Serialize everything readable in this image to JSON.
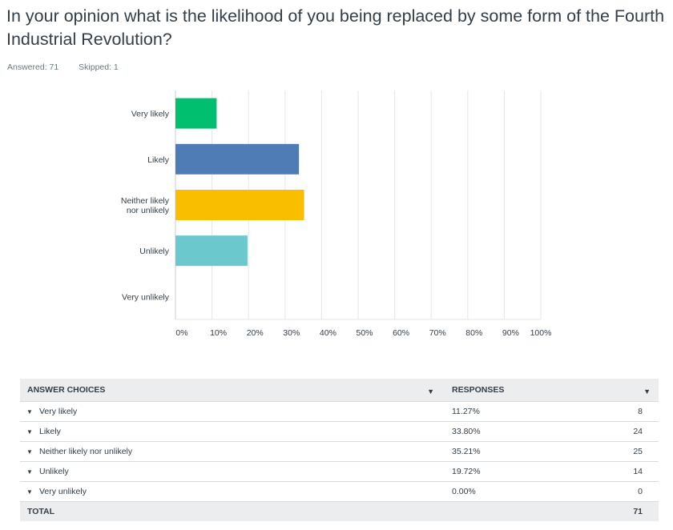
{
  "question": {
    "title": "In your opinion what is the likelihood of you being replaced by some form of the Fourth Industrial Revolution?",
    "answered": "Answered: 71",
    "skipped": "Skipped: 1"
  },
  "chart_data": {
    "type": "bar",
    "orientation": "horizontal",
    "categories": [
      "Very likely",
      "Likely",
      "Neither likely nor unlikely",
      "Unlikely",
      "Very unlikely"
    ],
    "category_lines": [
      [
        "Very likely"
      ],
      [
        "Likely"
      ],
      [
        "Neither likely",
        "nor unlikely"
      ],
      [
        "Unlikely"
      ],
      [
        "Very unlikely"
      ]
    ],
    "values": [
      11.27,
      33.8,
      35.21,
      19.72,
      0.0
    ],
    "colors": [
      "#00bf6f",
      "#507cb6",
      "#f9be00",
      "#6bc8cd",
      "#ff8b4f"
    ],
    "xlim": [
      0,
      100
    ],
    "x_ticks": [
      0,
      10,
      20,
      30,
      40,
      50,
      60,
      70,
      80,
      90,
      100
    ],
    "x_tick_labels": [
      "0%",
      "10%",
      "20%",
      "30%",
      "40%",
      "50%",
      "60%",
      "70%",
      "80%",
      "90%",
      "100%"
    ],
    "grid": true
  },
  "table": {
    "headers": {
      "choice": "ANSWER CHOICES",
      "responses": "RESPONSES",
      "sort_icon": "caret-down"
    },
    "rows": [
      {
        "label": "Very likely",
        "percent": "11.27%",
        "count": "8"
      },
      {
        "label": "Likely",
        "percent": "33.80%",
        "count": "24"
      },
      {
        "label": "Neither likely nor unlikely",
        "percent": "35.21%",
        "count": "25"
      },
      {
        "label": "Unlikely",
        "percent": "19.72%",
        "count": "14"
      },
      {
        "label": "Very unlikely",
        "percent": "0.00%",
        "count": "0"
      }
    ],
    "total": {
      "label": "TOTAL",
      "count": "71"
    }
  }
}
